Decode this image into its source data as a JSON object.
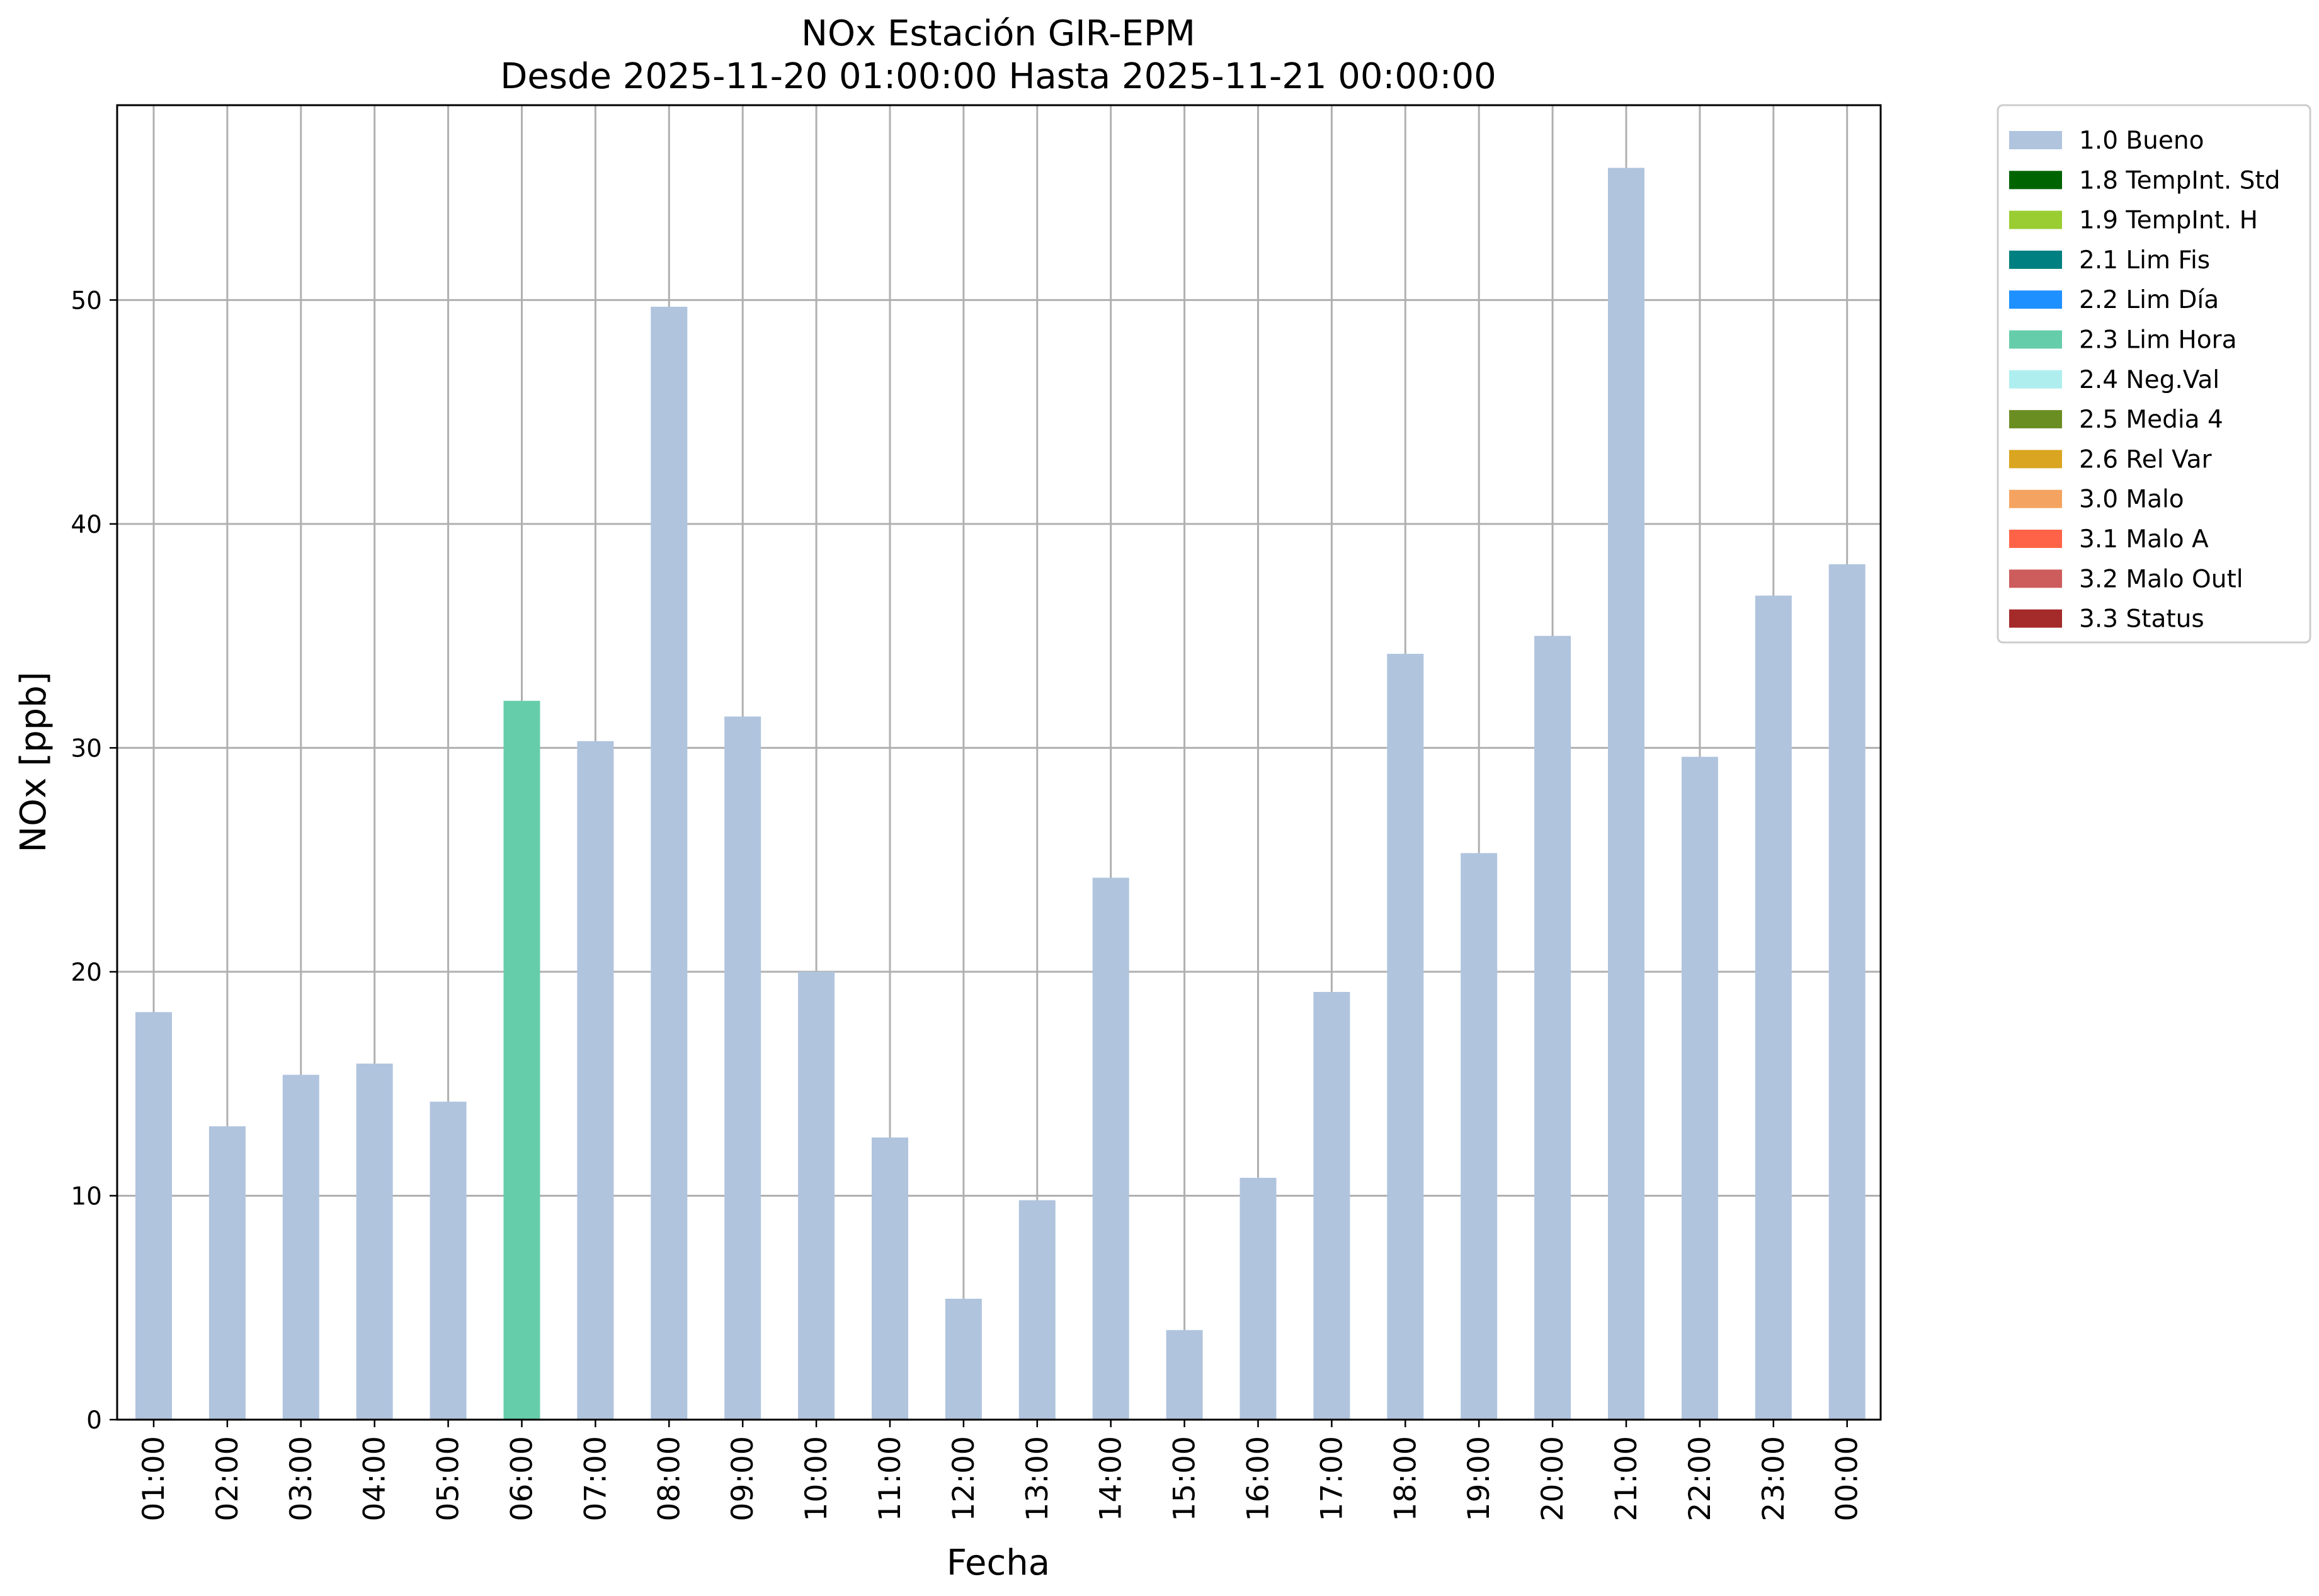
{
  "chart_data": {
    "type": "bar",
    "title": "NOx Estación GIR-EPM",
    "subtitle": "Desde 2025-11-20 01:00:00 Hasta 2025-11-21 00:00:00",
    "xlabel": "Fecha",
    "ylabel": "NOx [ppb]",
    "ylim": [
      0,
      58.7
    ],
    "yticks": [
      "0",
      "10",
      "20",
      "30",
      "40",
      "50"
    ],
    "grid": true,
    "legend_position": "outside-top-right",
    "categories": [
      "01:00",
      "02:00",
      "03:00",
      "04:00",
      "05:00",
      "06:00",
      "07:00",
      "08:00",
      "09:00",
      "10:00",
      "11:00",
      "12:00",
      "13:00",
      "14:00",
      "15:00",
      "16:00",
      "17:00",
      "18:00",
      "19:00",
      "20:00",
      "21:00",
      "22:00",
      "23:00",
      "00:00"
    ],
    "values": [
      18.2,
      13.1,
      15.4,
      15.9,
      14.2,
      32.1,
      30.3,
      49.7,
      31.4,
      20.0,
      12.6,
      5.4,
      9.8,
      24.2,
      4.0,
      10.8,
      19.1,
      34.2,
      25.3,
      35.0,
      55.9,
      29.6,
      36.8,
      38.2
    ],
    "flags": [
      "1.0 Bueno",
      "1.0 Bueno",
      "1.0 Bueno",
      "1.0 Bueno",
      "1.0 Bueno",
      "2.3 Lim Hora",
      "1.0 Bueno",
      "1.0 Bueno",
      "1.0 Bueno",
      "1.0 Bueno",
      "1.0 Bueno",
      "1.0 Bueno",
      "1.0 Bueno",
      "1.0 Bueno",
      "1.0 Bueno",
      "1.0 Bueno",
      "1.0 Bueno",
      "1.0 Bueno",
      "1.0 Bueno",
      "1.0 Bueno",
      "1.0 Bueno",
      "1.0 Bueno",
      "1.0 Bueno",
      "1.0 Bueno"
    ],
    "legend": [
      {
        "name": "1.0 Bueno",
        "color": "#b0c4de"
      },
      {
        "name": "1.8 TempInt. Std",
        "color": "#006400"
      },
      {
        "name": "1.9 TempInt. H",
        "color": "#9acd32"
      },
      {
        "name": "2.1 Lim Fis",
        "color": "#008080"
      },
      {
        "name": "2.2 Lim Día",
        "color": "#1e90ff"
      },
      {
        "name": "2.3 Lim Hora",
        "color": "#66cdaa"
      },
      {
        "name": "2.4 Neg.Val",
        "color": "#afeeee"
      },
      {
        "name": "2.5 Media 4",
        "color": "#6b8e23"
      },
      {
        "name": "2.6 Rel Var",
        "color": "#daa520"
      },
      {
        "name": "3.0 Malo",
        "color": "#f4a460"
      },
      {
        "name": "3.1 Malo A",
        "color": "#ff6347"
      },
      {
        "name": "3.2 Malo Outl",
        "color": "#cd5c5c"
      },
      {
        "name": "3.3 Status",
        "color": "#a52a2a"
      }
    ]
  }
}
